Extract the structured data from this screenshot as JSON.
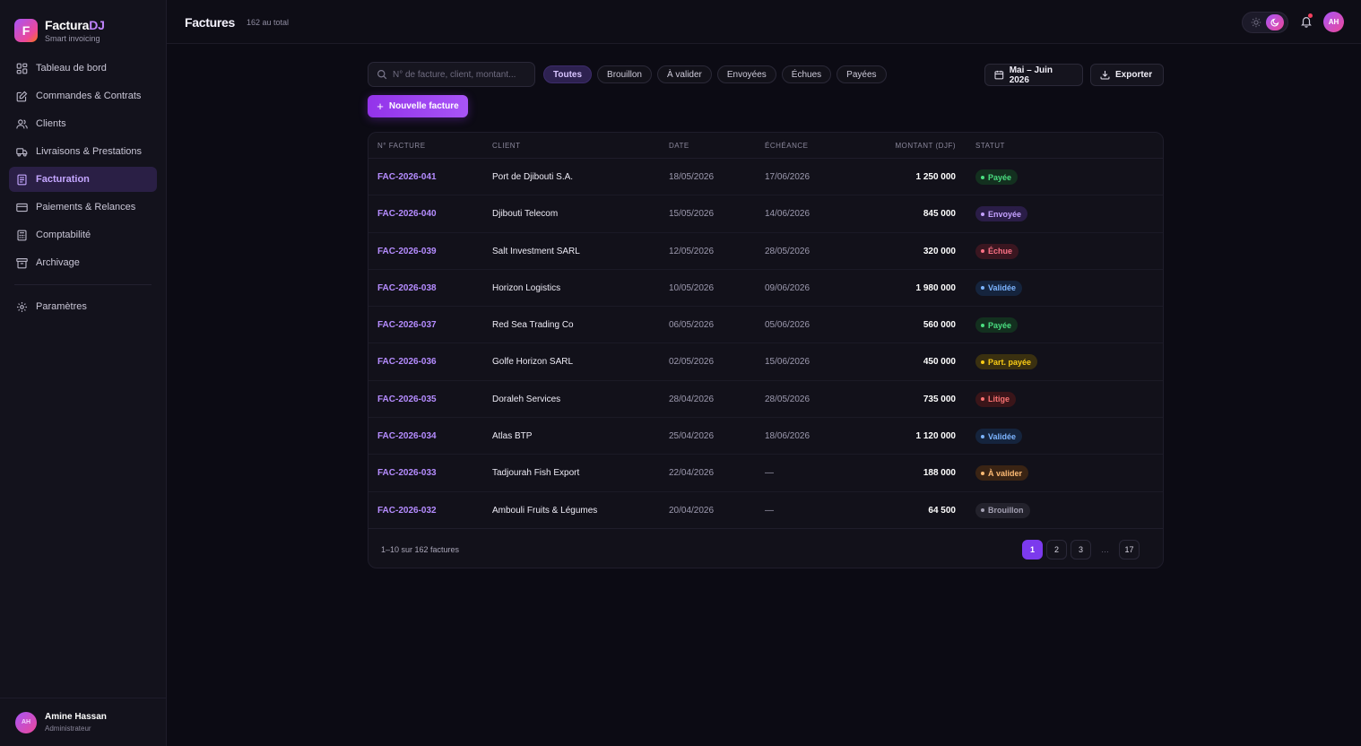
{
  "brand": {
    "name_main": "Factura",
    "name_accent": "DJ",
    "tagline": "Smart invoicing",
    "logo_letter": "F"
  },
  "sidebar": {
    "items": [
      {
        "label": "Tableau de bord",
        "icon": "dashboard-icon"
      },
      {
        "label": "Commandes & Contrats",
        "icon": "edit-document-icon"
      },
      {
        "label": "Clients",
        "icon": "users-icon"
      },
      {
        "label": "Livraisons & Prestations",
        "icon": "truck-icon"
      },
      {
        "label": "Facturation",
        "icon": "invoice-icon",
        "active": true
      },
      {
        "label": "Paiements & Relances",
        "icon": "credit-card-icon"
      },
      {
        "label": "Comptabilité",
        "icon": "calculator-icon"
      },
      {
        "label": "Archivage",
        "icon": "archive-icon"
      }
    ],
    "settings": {
      "label": "Paramètres",
      "icon": "gear-icon"
    }
  },
  "user": {
    "name": "Amine Hassan",
    "role": "Administrateur",
    "initials": "AH"
  },
  "header": {
    "title": "Factures",
    "count": "162 au total",
    "avatar_initials": "AH"
  },
  "search": {
    "placeholder": "N° de facture, client, montant...",
    "value": ""
  },
  "filters": [
    "Toutes",
    "Brouillon",
    "À valider",
    "Envoyées",
    "Échues",
    "Payées"
  ],
  "active_filter": "Toutes",
  "period": {
    "label": "Mai – Juin 2026"
  },
  "export": {
    "label": "Exporter"
  },
  "new_invoice": {
    "label": "Nouvelle facture"
  },
  "table": {
    "columns": {
      "num": "N° FACTURE",
      "client": "CLIENT",
      "date": "DATE",
      "due": "ÉCHÉANCE",
      "amount": "MONTANT (DJF)",
      "status": "STATUT"
    },
    "rows": [
      {
        "num": "FAC-2026-041",
        "client": "Port de Djibouti S.A.",
        "date": "18/05/2026",
        "due": "17/06/2026",
        "amount": "1 250 000",
        "status": "Payée",
        "status_key": "paid"
      },
      {
        "num": "FAC-2026-040",
        "client": "Djibouti Telecom",
        "date": "15/05/2026",
        "due": "14/06/2026",
        "amount": "845 000",
        "status": "Envoyée",
        "status_key": "sent"
      },
      {
        "num": "FAC-2026-039",
        "client": "Salt Investment SARL",
        "date": "12/05/2026",
        "due": "28/05/2026",
        "amount": "320 000",
        "status": "Échue",
        "status_key": "overdue"
      },
      {
        "num": "FAC-2026-038",
        "client": "Horizon Logistics",
        "date": "10/05/2026",
        "due": "09/06/2026",
        "amount": "1 980 000",
        "status": "Validée",
        "status_key": "validated"
      },
      {
        "num": "FAC-2026-037",
        "client": "Red Sea Trading Co",
        "date": "06/05/2026",
        "due": "05/06/2026",
        "amount": "560 000",
        "status": "Payée",
        "status_key": "paid"
      },
      {
        "num": "FAC-2026-036",
        "client": "Golfe Horizon SARL",
        "date": "02/05/2026",
        "due": "15/06/2026",
        "amount": "450 000",
        "status": "Part. payée",
        "status_key": "partial"
      },
      {
        "num": "FAC-2026-035",
        "client": "Doraleh Services",
        "date": "28/04/2026",
        "due": "28/05/2026",
        "amount": "735 000",
        "status": "Litige",
        "status_key": "dispute"
      },
      {
        "num": "FAC-2026-034",
        "client": "Atlas BTP",
        "date": "25/04/2026",
        "due": "18/06/2026",
        "amount": "1 120 000",
        "status": "Validée",
        "status_key": "validated"
      },
      {
        "num": "FAC-2026-033",
        "client": "Tadjourah Fish Export",
        "date": "22/04/2026",
        "due": "—",
        "amount": "188 000",
        "status": "À valider",
        "status_key": "pending"
      },
      {
        "num": "FAC-2026-032",
        "client": "Ambouli Fruits & Légumes",
        "date": "20/04/2026",
        "due": "—",
        "amount": "64 500",
        "status": "Brouillon",
        "status_key": "draft"
      }
    ]
  },
  "status_colors": {
    "paid": {
      "fg": "#4ade80",
      "bg": "#13301f"
    },
    "sent": {
      "fg": "#c4a1ff",
      "bg": "#2a1d47"
    },
    "overdue": {
      "fg": "#fb7185",
      "bg": "#3a1620"
    },
    "validated": {
      "fg": "#7cb4ff",
      "bg": "#15243d"
    },
    "partial": {
      "fg": "#facc15",
      "bg": "#3a3010"
    },
    "dispute": {
      "fg": "#f87171",
      "bg": "#3a1519"
    },
    "pending": {
      "fg": "#fdba74",
      "bg": "#3a2414"
    },
    "draft": {
      "fg": "#a3a0b2",
      "bg": "#23222c"
    }
  },
  "pagination": {
    "range": "1–10 sur 162 factures",
    "pages": [
      "1",
      "2",
      "3",
      "…",
      "17"
    ],
    "current": "1",
    "prev": "‹",
    "next": "›"
  }
}
